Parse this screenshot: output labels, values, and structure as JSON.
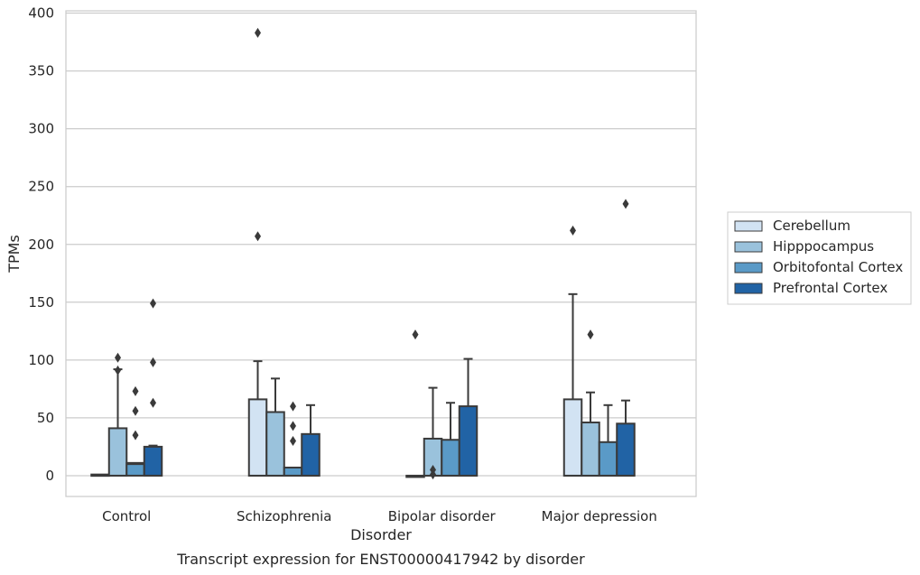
{
  "chart_data": {
    "type": "box",
    "title": "",
    "caption": "Transcript expression for ENST00000417942 by disorder",
    "xlabel": "Disorder",
    "ylabel": "TPMs",
    "ylim": [
      -18,
      402
    ],
    "yticks": [
      0,
      50,
      100,
      150,
      200,
      250,
      300,
      350,
      400
    ],
    "grid": "horizontal",
    "legend_position": "right",
    "categories": [
      "Control",
      "Schizophrenia",
      "Bipolar disorder",
      "Major depression"
    ],
    "series": [
      {
        "name": "Cerebellum",
        "color": "#d2e3f3",
        "boxes": [
          {
            "q1": 0,
            "median": 0.5,
            "q3": 1,
            "whislo": 0,
            "whishi": 1,
            "fliers": []
          },
          {
            "q1": 0,
            "median": 0,
            "q3": 66,
            "whislo": 0,
            "whishi": 99,
            "fliers": [
              207,
              383
            ]
          },
          {
            "q1": 0,
            "median": 0,
            "q3": 0,
            "whislo": 0,
            "whishi": 0,
            "fliers": [
              122
            ]
          },
          {
            "q1": 0,
            "median": 0,
            "q3": 66,
            "whislo": 0,
            "whishi": 157,
            "fliers": [
              212
            ]
          }
        ]
      },
      {
        "name": "Hipppocampus",
        "color": "#9ac2dc",
        "boxes": [
          {
            "q1": 0,
            "median": 0,
            "q3": 41,
            "whislo": 0,
            "whishi": 92,
            "fliers": [
              91,
              102
            ]
          },
          {
            "q1": 0,
            "median": 0,
            "q3": 55,
            "whislo": 0,
            "whishi": 84,
            "fliers": []
          },
          {
            "q1": 0,
            "median": 0,
            "q3": 32,
            "whislo": 0,
            "whishi": 76,
            "fliers": [
              1,
              5
            ]
          },
          {
            "q1": 0,
            "median": 0,
            "q3": 46,
            "whislo": 0,
            "whishi": 72,
            "fliers": [
              122
            ]
          }
        ]
      },
      {
        "name": "Orbitofontal Cortex",
        "color": "#5a9ac7",
        "boxes": [
          {
            "q1": 0,
            "median": 10,
            "q3": 11,
            "whislo": 0,
            "whishi": 11,
            "fliers": [
              35,
              56,
              73
            ]
          },
          {
            "q1": 0,
            "median": 0,
            "q3": 7,
            "whislo": 0,
            "whishi": 7,
            "fliers": [
              30,
              43,
              60
            ]
          },
          {
            "q1": 0,
            "median": 0,
            "q3": 31,
            "whislo": 0,
            "whishi": 63,
            "fliers": []
          },
          {
            "q1": 0,
            "median": 0,
            "q3": 29,
            "whislo": 0,
            "whishi": 61,
            "fliers": []
          }
        ]
      },
      {
        "name": "Prefrontal Cortex",
        "color": "#2163a5",
        "boxes": [
          {
            "q1": 0,
            "median": 0,
            "q3": 25,
            "whislo": 0,
            "whishi": 26,
            "fliers": [
              63,
              98,
              149
            ]
          },
          {
            "q1": 0,
            "median": 0,
            "q3": 36,
            "whislo": 0,
            "whishi": 61,
            "fliers": []
          },
          {
            "q1": 0,
            "median": 0,
            "q3": 60,
            "whislo": 0,
            "whishi": 101,
            "fliers": []
          },
          {
            "q1": 0,
            "median": 0,
            "q3": 45,
            "whislo": 0,
            "whishi": 65,
            "fliers": [
              235
            ]
          }
        ]
      }
    ]
  }
}
